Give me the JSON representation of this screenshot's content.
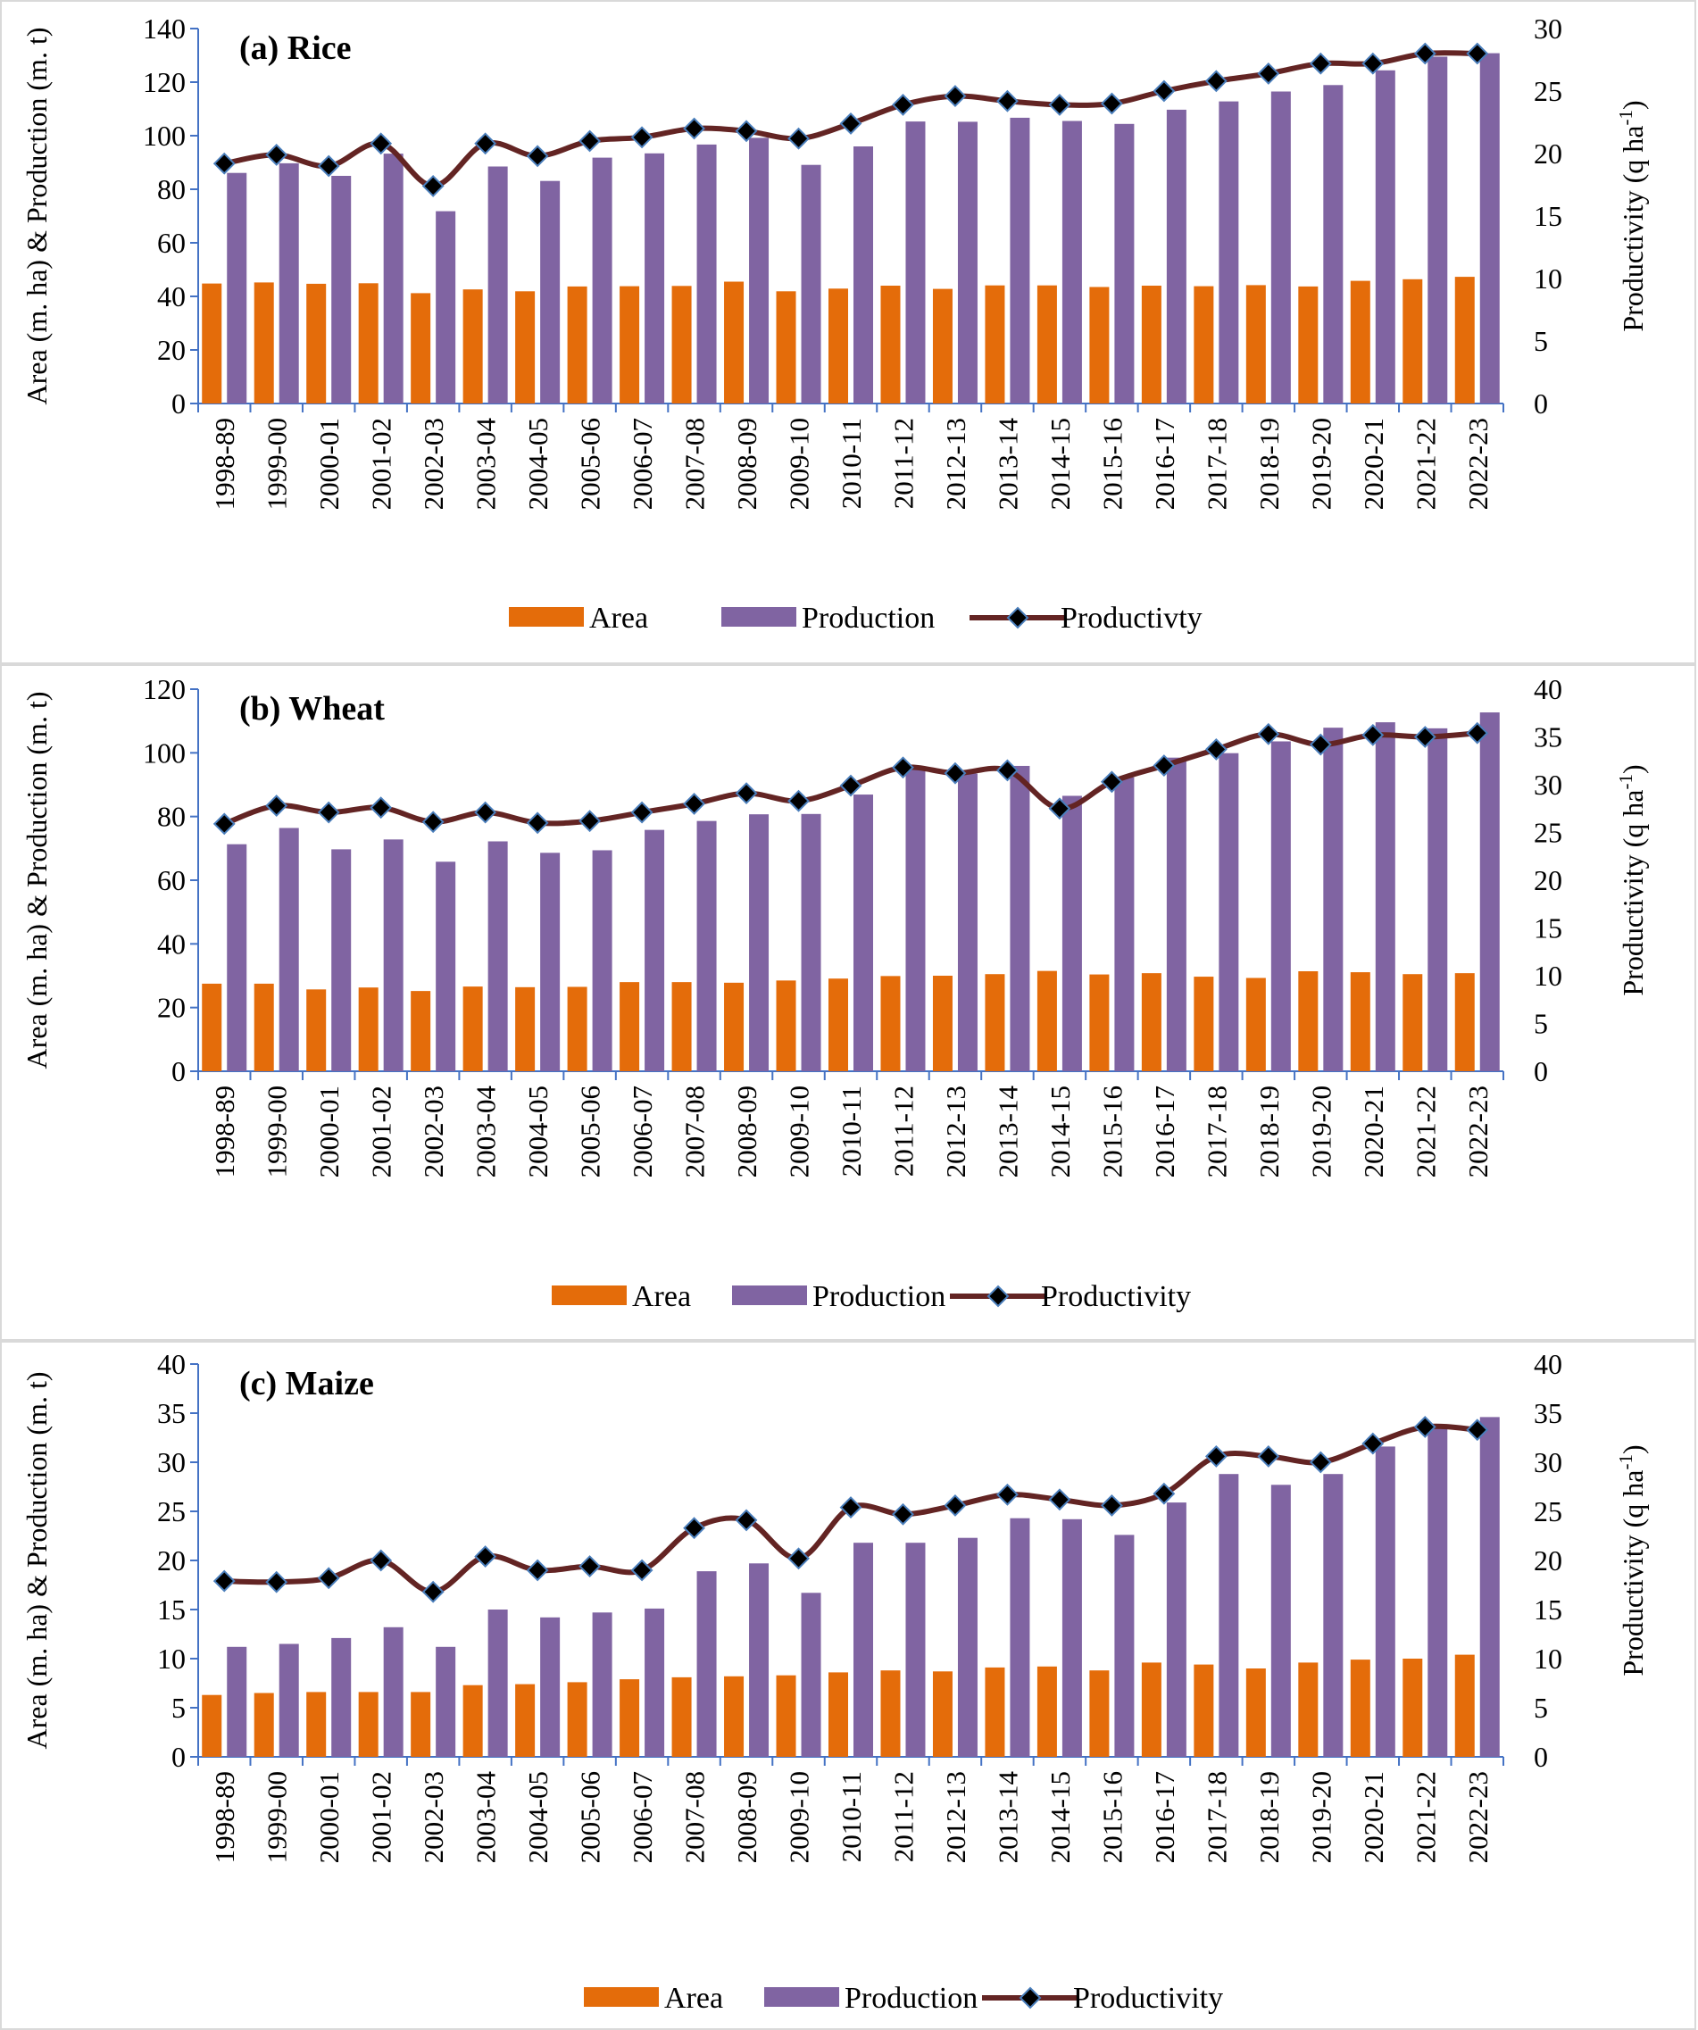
{
  "chart_data": [
    {
      "type": "bar",
      "title": "(a) Rice",
      "categories": [
        "1998-89",
        "1999-00",
        "2000-01",
        "2001-02",
        "2002-03",
        "2003-04",
        "2004-05",
        "2005-06",
        "2006-07",
        "2007-08",
        "2008-09",
        "2009-10",
        "2010-11",
        "2011-12",
        "2012-13",
        "2013-14",
        "2014-15",
        "2015-16",
        "2016-17",
        "2017-18",
        "2018-19",
        "2019-20",
        "2020-21",
        "2021-22",
        "2022-23"
      ],
      "ylabel": "Area (m. ha) & Production (m. t)",
      "y2label": "Productivity (q ha",
      "y2label_sup": "-1",
      "y2label_end": ")",
      "ylim": [
        0,
        140
      ],
      "yticks": [
        0,
        20,
        40,
        60,
        80,
        100,
        120,
        140
      ],
      "y2lim": [
        0,
        30
      ],
      "y2ticks": [
        0,
        5,
        10,
        15,
        20,
        25,
        30
      ],
      "legend_position": "bottom",
      "series": [
        {
          "name": "Area",
          "kind": "bar",
          "axis": "left",
          "color": "#E46C0A",
          "values": [
            44.8,
            45.2,
            44.7,
            44.9,
            41.2,
            42.6,
            41.9,
            43.7,
            43.8,
            43.9,
            45.5,
            41.9,
            42.9,
            44.0,
            42.8,
            44.1,
            44.1,
            43.5,
            44.0,
            43.8,
            44.2,
            43.7,
            45.8,
            46.4,
            47.3
          ]
        },
        {
          "name": "Production",
          "kind": "bar",
          "axis": "left",
          "color": "#8064A2",
          "values": [
            86.1,
            89.7,
            85.0,
            93.3,
            71.8,
            88.5,
            83.1,
            91.8,
            93.4,
            96.7,
            99.2,
            89.1,
            96.0,
            105.3,
            105.2,
            106.7,
            105.5,
            104.4,
            109.7,
            112.8,
            116.5,
            118.9,
            124.4,
            129.5,
            130.8
          ]
        },
        {
          "name": "Productivty",
          "kind": "line",
          "axis": "right",
          "color": "#632423",
          "marker_color": "#000000",
          "values": [
            19.2,
            19.9,
            19.0,
            20.8,
            17.4,
            20.8,
            19.8,
            21.0,
            21.3,
            22.0,
            21.8,
            21.2,
            22.4,
            23.9,
            24.6,
            24.2,
            23.9,
            24.0,
            25.0,
            25.8,
            26.4,
            27.2,
            27.2,
            28.0,
            28.0
          ]
        }
      ]
    },
    {
      "type": "bar",
      "title": "(b) Wheat",
      "categories": [
        "1998-89",
        "1999-00",
        "2000-01",
        "2001-02",
        "2002-03",
        "2003-04",
        "2004-05",
        "2005-06",
        "2006-07",
        "2007-08",
        "2008-09",
        "2009-10",
        "2010-11",
        "2011-12",
        "2012-13",
        "2013-14",
        "2014-15",
        "2015-16",
        "2016-17",
        "2017-18",
        "2018-19",
        "2019-20",
        "2020-21",
        "2021-22",
        "2022-23"
      ],
      "ylabel": "Area (m. ha) & Production (m. t)",
      "y2label": "Productivity (q ha",
      "y2label_sup": "-1",
      "y2label_end": ")",
      "ylim": [
        0,
        120
      ],
      "yticks": [
        0,
        20,
        40,
        60,
        80,
        100,
        120
      ],
      "y2lim": [
        0,
        40
      ],
      "y2ticks": [
        0,
        5,
        10,
        15,
        20,
        25,
        30,
        35,
        40
      ],
      "legend_position": "bottom",
      "series": [
        {
          "name": "Area",
          "kind": "bar",
          "axis": "left",
          "color": "#E46C0A",
          "values": [
            27.5,
            27.5,
            25.7,
            26.3,
            25.2,
            26.6,
            26.4,
            26.5,
            28.0,
            28.0,
            27.8,
            28.5,
            29.1,
            29.9,
            30.0,
            30.5,
            31.5,
            30.4,
            30.8,
            29.7,
            29.3,
            31.4,
            31.1,
            30.5,
            30.8
          ]
        },
        {
          "name": "Production",
          "kind": "bar",
          "axis": "left",
          "color": "#8064A2",
          "values": [
            71.3,
            76.4,
            69.7,
            72.8,
            65.8,
            72.2,
            68.6,
            69.4,
            75.8,
            78.6,
            80.7,
            80.8,
            86.9,
            94.9,
            93.5,
            95.9,
            86.5,
            92.3,
            98.5,
            99.9,
            103.6,
            107.9,
            109.6,
            107.7,
            112.7
          ]
        },
        {
          "name": "Productivity",
          "kind": "line",
          "axis": "right",
          "color": "#632423",
          "marker_color": "#000000",
          "values": [
            25.9,
            27.8,
            27.1,
            27.6,
            26.1,
            27.1,
            26.0,
            26.2,
            27.1,
            28.0,
            29.1,
            28.3,
            29.9,
            31.8,
            31.2,
            31.5,
            27.5,
            30.3,
            32.0,
            33.7,
            35.3,
            34.2,
            35.2,
            35.0,
            35.4
          ]
        }
      ]
    },
    {
      "type": "bar",
      "title": "(c) Maize",
      "categories": [
        "1998-89",
        "1999-00",
        "2000-01",
        "2001-02",
        "2002-03",
        "2003-04",
        "2004-05",
        "2005-06",
        "2006-07",
        "2007-08",
        "2008-09",
        "2009-10",
        "2010-11",
        "2011-12",
        "2012-13",
        "2013-14",
        "2014-15",
        "2015-16",
        "2016-17",
        "2017-18",
        "2018-19",
        "2019-20",
        "2020-21",
        "2021-22",
        "2022-23"
      ],
      "ylabel": "Area (m. ha) & Production (m. t)",
      "y2label": "Productivity (q ha",
      "y2label_sup": "-1",
      "y2label_end": ")",
      "ylim": [
        0,
        40
      ],
      "yticks": [
        0,
        5,
        10,
        15,
        20,
        25,
        30,
        35,
        40
      ],
      "y2lim": [
        0,
        40
      ],
      "y2ticks": [
        0,
        5,
        10,
        15,
        20,
        25,
        30,
        35,
        40
      ],
      "legend_position": "bottom",
      "series": [
        {
          "name": "Area",
          "kind": "bar",
          "axis": "left",
          "color": "#E46C0A",
          "values": [
            6.3,
            6.5,
            6.6,
            6.6,
            6.6,
            7.3,
            7.4,
            7.6,
            7.9,
            8.1,
            8.2,
            8.3,
            8.6,
            8.8,
            8.7,
            9.1,
            9.2,
            8.8,
            9.6,
            9.4,
            9.0,
            9.6,
            9.9,
            10.0,
            10.4
          ]
        },
        {
          "name": "Production",
          "kind": "bar",
          "axis": "left",
          "color": "#8064A2",
          "values": [
            11.2,
            11.5,
            12.1,
            13.2,
            11.2,
            15.0,
            14.2,
            14.7,
            15.1,
            18.9,
            19.7,
            16.7,
            21.8,
            21.8,
            22.3,
            24.3,
            24.2,
            22.6,
            25.9,
            28.8,
            27.7,
            28.8,
            31.6,
            33.6,
            34.6
          ]
        },
        {
          "name": "Productivity",
          "kind": "line",
          "axis": "right",
          "color": "#632423",
          "marker_color": "#000000",
          "values": [
            17.9,
            17.8,
            18.2,
            20.0,
            16.8,
            20.4,
            19.0,
            19.4,
            19.0,
            23.3,
            24.1,
            20.2,
            25.4,
            24.7,
            25.6,
            26.7,
            26.2,
            25.6,
            26.8,
            30.6,
            30.6,
            30.0,
            31.9,
            33.6,
            33.3
          ]
        }
      ]
    }
  ]
}
